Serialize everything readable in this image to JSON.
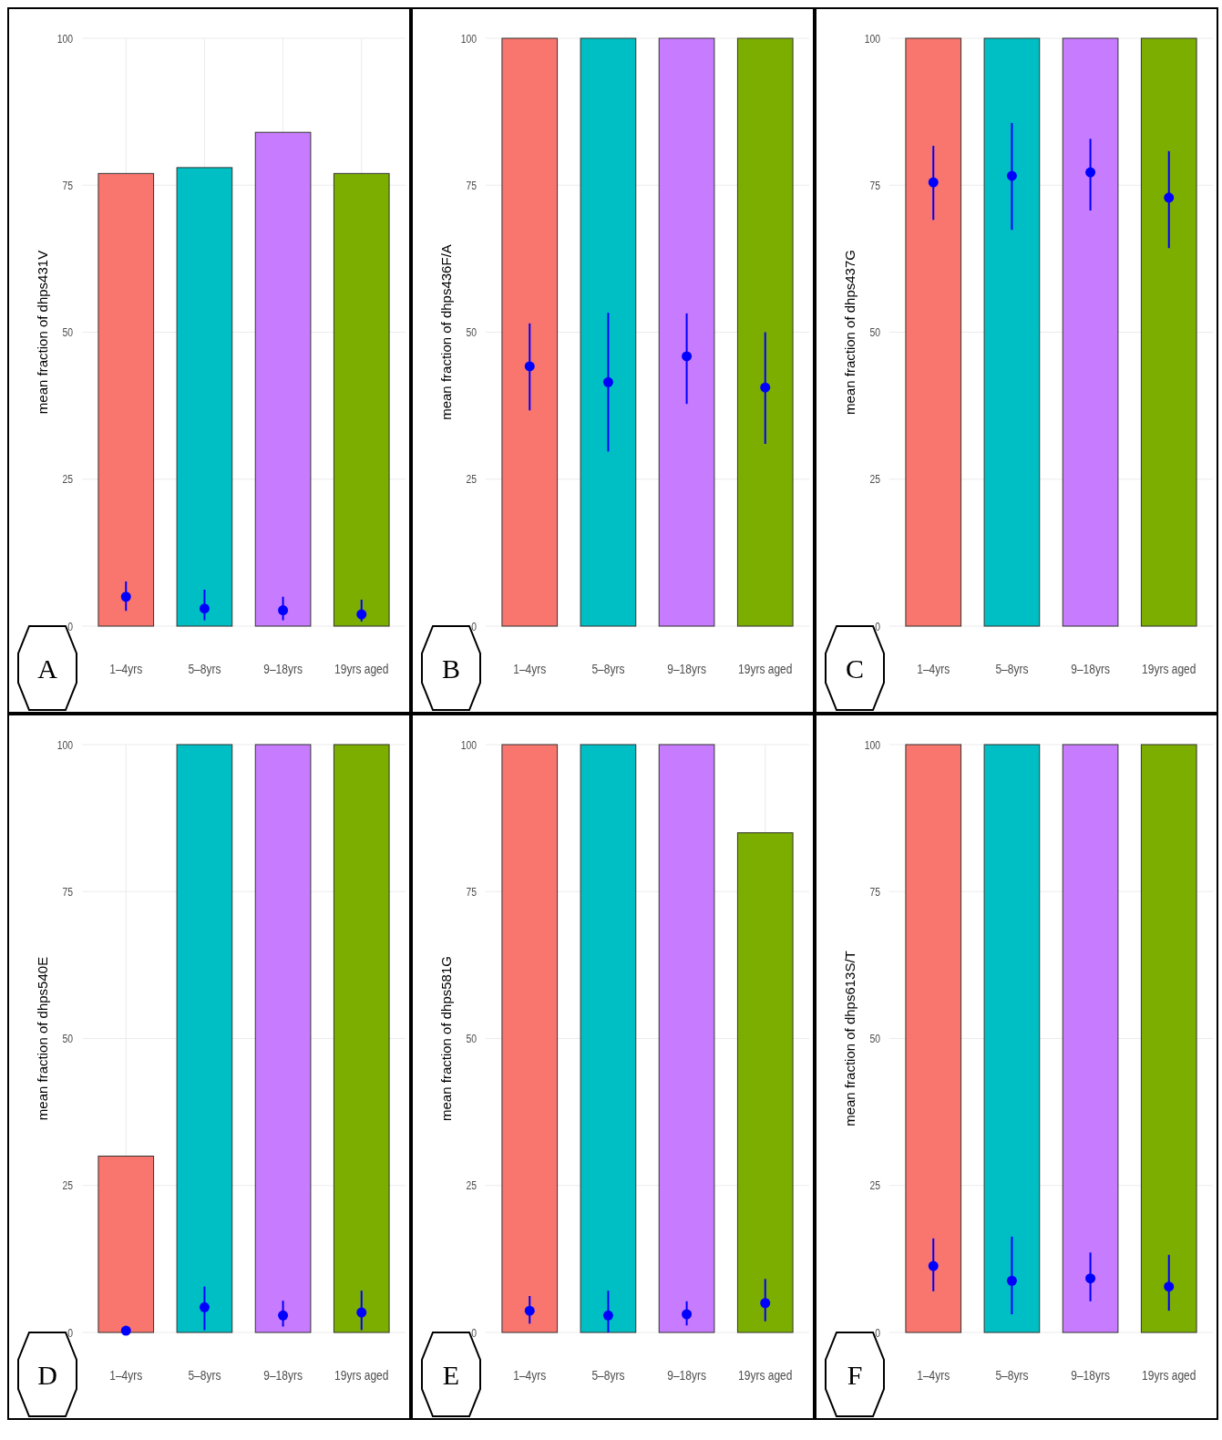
{
  "chart_data": [
    {
      "type": "bar",
      "ylabel": "mean fraction of dhps431V",
      "categories": [
        "1–4yrs",
        "5–8yrs",
        "9–18yrs",
        "19yrs aged"
      ],
      "ylim": [
        0,
        100
      ],
      "yticks": [
        0,
        25,
        50,
        75,
        100
      ],
      "grid": true,
      "annotations": [
        "A"
      ],
      "series": [
        {
          "colors": [
            "#f8766d",
            "#00bfc4",
            "#c77cff",
            "#7cae00"
          ],
          "values": [
            77,
            78,
            84,
            77
          ]
        },
        {
          "type": "scatter",
          "color": "#0000ff",
          "marker": "circle",
          "values": [
            5.0,
            3.0,
            2.7,
            2.0
          ],
          "errors": [
            [
              2.6,
              7.6
            ],
            [
              1.0,
              6.2
            ],
            [
              1.0,
              5.0
            ],
            [
              0.8,
              4.5
            ]
          ]
        }
      ]
    },
    {
      "type": "bar",
      "ylabel": "mean fraction of dhps436F/A",
      "categories": [
        "1–4yrs",
        "5–8yrs",
        "9–18yrs",
        "19yrs aged"
      ],
      "ylim": [
        0,
        100
      ],
      "yticks": [
        0,
        25,
        50,
        75,
        100
      ],
      "grid": true,
      "annotations": [
        "B"
      ],
      "series": [
        {
          "colors": [
            "#f8766d",
            "#00bfc4",
            "#c77cff",
            "#7cae00"
          ],
          "values": [
            100,
            100,
            100,
            100
          ]
        },
        {
          "type": "scatter",
          "color": "#0000ff",
          "marker": "circle",
          "values": [
            44.2,
            41.5,
            45.9,
            40.6
          ],
          "errors": [
            [
              36.7,
              51.5
            ],
            [
              29.7,
              53.3
            ],
            [
              37.8,
              53.2
            ],
            [
              31,
              50
            ]
          ]
        }
      ]
    },
    {
      "type": "bar",
      "ylabel": "mean fraction of dhps437G",
      "categories": [
        "1–4yrs",
        "5–8yrs",
        "9–18yrs",
        "19yrs aged"
      ],
      "ylim": [
        0,
        100
      ],
      "yticks": [
        0,
        25,
        50,
        75,
        100
      ],
      "grid": true,
      "annotations": [
        "C"
      ],
      "series": [
        {
          "colors": [
            "#f8766d",
            "#00bfc4",
            "#c77cff",
            "#7cae00"
          ],
          "values": [
            100,
            100,
            100,
            100
          ]
        },
        {
          "type": "scatter",
          "color": "#0000ff",
          "marker": "circle",
          "values": [
            75.5,
            76.6,
            77.2,
            72.9
          ],
          "errors": [
            [
              69.1,
              81.7
            ],
            [
              67.4,
              85.6
            ],
            [
              70.7,
              82.9
            ],
            [
              64.3,
              80.8
            ]
          ]
        }
      ]
    },
    {
      "type": "bar",
      "ylabel": "mean fraction of dhps540E",
      "categories": [
        "1–4yrs",
        "5–8yrs",
        "9–18yrs",
        "19yrs aged"
      ],
      "ylim": [
        0,
        100
      ],
      "yticks": [
        0,
        25,
        50,
        75,
        100
      ],
      "grid": true,
      "annotations": [
        "D"
      ],
      "series": [
        {
          "colors": [
            "#f8766d",
            "#00bfc4",
            "#c77cff",
            "#7cae00"
          ],
          "values": [
            30,
            100,
            100,
            100
          ]
        },
        {
          "type": "scatter",
          "color": "#0000ff",
          "marker": "circle",
          "values": [
            0.3,
            4.3,
            2.9,
            3.4
          ],
          "errors": [
            [
              0,
              0.6
            ],
            [
              0.4,
              7.8
            ],
            [
              1.0,
              5.4
            ],
            [
              0.4,
              7.1
            ]
          ]
        }
      ]
    },
    {
      "type": "bar",
      "ylabel": "mean fraction of dhps581G",
      "categories": [
        "1–4yrs",
        "5–8yrs",
        "9–18yrs",
        "19yrs aged"
      ],
      "ylim": [
        0,
        100
      ],
      "yticks": [
        0,
        25,
        50,
        75,
        100
      ],
      "grid": true,
      "annotations": [
        "E"
      ],
      "series": [
        {
          "colors": [
            "#f8766d",
            "#00bfc4",
            "#c77cff",
            "#7cae00"
          ],
          "values": [
            100,
            100,
            100,
            85
          ]
        },
        {
          "type": "scatter",
          "color": "#0000ff",
          "marker": "circle",
          "values": [
            3.7,
            2.9,
            3.1,
            5.0
          ],
          "errors": [
            [
              1.5,
              6.2
            ],
            [
              0,
              7.1
            ],
            [
              1.2,
              5.3
            ],
            [
              1.9,
              9.1
            ]
          ]
        }
      ]
    },
    {
      "type": "bar",
      "ylabel": "mean fraction of dhps613S/T",
      "categories": [
        "1–4yrs",
        "5–8yrs",
        "9–18yrs",
        "19yrs aged"
      ],
      "ylim": [
        0,
        100
      ],
      "yticks": [
        0,
        25,
        50,
        75,
        100
      ],
      "grid": true,
      "annotations": [
        "F"
      ],
      "series": [
        {
          "colors": [
            "#f8766d",
            "#00bfc4",
            "#c77cff",
            "#7cae00"
          ],
          "values": [
            100,
            100,
            100,
            100
          ]
        },
        {
          "type": "scatter",
          "color": "#0000ff",
          "marker": "circle",
          "values": [
            11.3,
            8.8,
            9.2,
            7.8
          ],
          "errors": [
            [
              7.0,
              16.0
            ],
            [
              3.1,
              16.3
            ],
            [
              5.3,
              13.6
            ],
            [
              3.7,
              13.2
            ]
          ]
        }
      ]
    }
  ]
}
